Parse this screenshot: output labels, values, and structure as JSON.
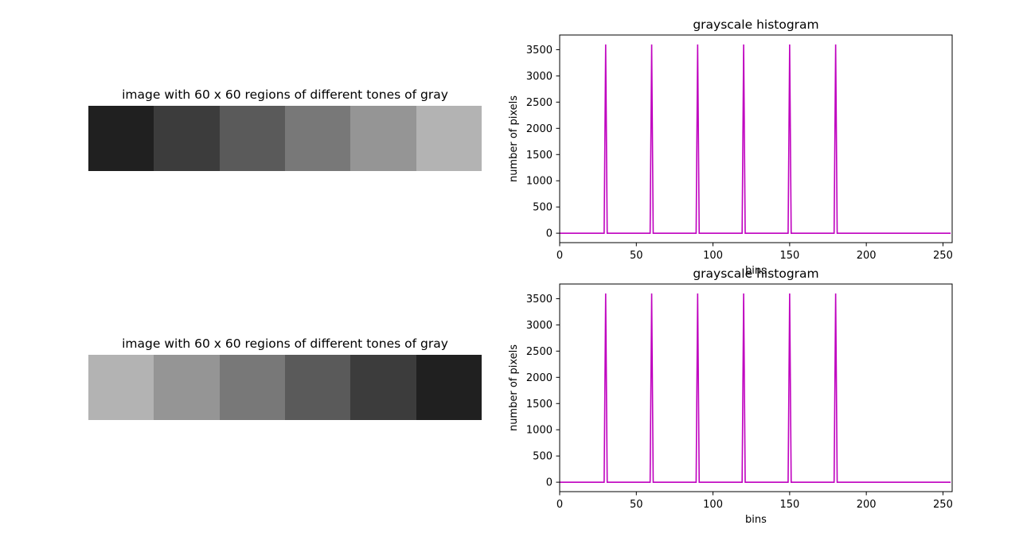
{
  "panels": [
    {
      "image": {
        "title": "image with 60 x 60 regions of different tones of gray",
        "tones": [
          "#202020",
          "#3c3c3c",
          "#5a5a5a",
          "#787878",
          "#959595",
          "#b3b3b3"
        ]
      }
    },
    {
      "image": {
        "title": "image with 60 x 60 regions of different tones of gray",
        "tones": [
          "#b3b3b3",
          "#959595",
          "#787878",
          "#5a5a5a",
          "#3c3c3c",
          "#202020"
        ]
      }
    }
  ],
  "chart_data": [
    {
      "type": "line",
      "title": "grayscale histogram",
      "xlabel": "bins",
      "ylabel": "number of pixels",
      "xlim": [
        0,
        256
      ],
      "ylim": [
        -180,
        3780
      ],
      "x_ticks": [
        0,
        50,
        100,
        150,
        200,
        250
      ],
      "y_ticks": [
        0,
        500,
        1000,
        1500,
        2000,
        2500,
        3000,
        3500
      ],
      "line_color": "#bf00bf",
      "grid": false,
      "bins": 256,
      "series": [
        {
          "peaks": [
            {
              "bin": 30,
              "count": 3600
            },
            {
              "bin": 60,
              "count": 3600
            },
            {
              "bin": 90,
              "count": 3600
            },
            {
              "bin": 120,
              "count": 3600
            },
            {
              "bin": 150,
              "count": 3600
            },
            {
              "bin": 180,
              "count": 3600
            }
          ],
          "baseline": 0
        }
      ]
    },
    {
      "type": "line",
      "title": "grayscale histogram",
      "xlabel": "bins",
      "ylabel": "number of pixels",
      "xlim": [
        0,
        256
      ],
      "ylim": [
        -180,
        3780
      ],
      "x_ticks": [
        0,
        50,
        100,
        150,
        200,
        250
      ],
      "y_ticks": [
        0,
        500,
        1000,
        1500,
        2000,
        2500,
        3000,
        3500
      ],
      "line_color": "#bf00bf",
      "grid": false,
      "bins": 256,
      "series": [
        {
          "peaks": [
            {
              "bin": 30,
              "count": 3600
            },
            {
              "bin": 60,
              "count": 3600
            },
            {
              "bin": 90,
              "count": 3600
            },
            {
              "bin": 120,
              "count": 3600
            },
            {
              "bin": 150,
              "count": 3600
            },
            {
              "bin": 180,
              "count": 3600
            }
          ],
          "baseline": 0
        }
      ]
    }
  ]
}
